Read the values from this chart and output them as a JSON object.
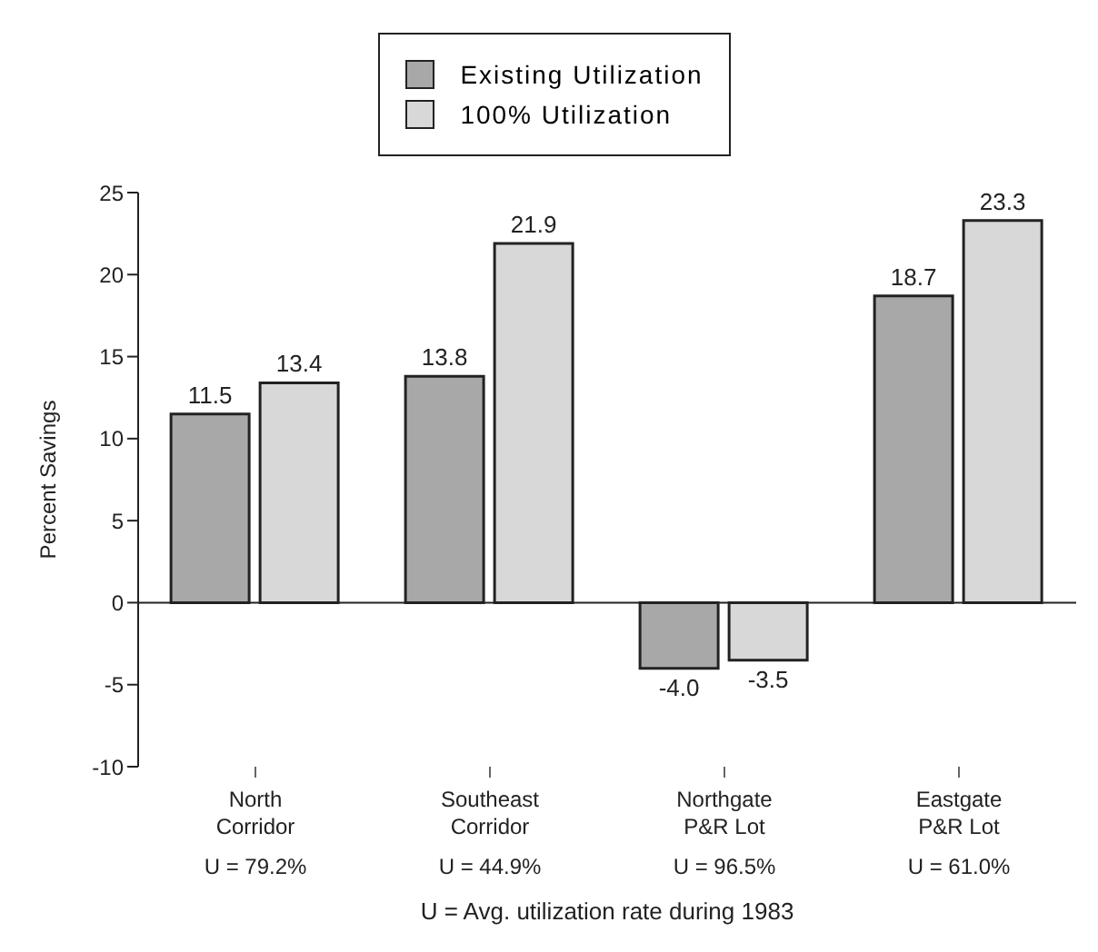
{
  "chart_data": {
    "type": "bar",
    "xlabel": "U = Avg. utilization rate during 1983",
    "ylabel": "Percent Savings",
    "categories": [
      "North\nCorridor\nU = 79.2%",
      "Southeast\nCorridor\nU = 44.9%",
      "Northgate\nP&R Lot\nU = 96.5%",
      "Eastgate\nP&R Lot\nU = 61.0%"
    ],
    "series": [
      {
        "name": "Existing Utilization",
        "color": "#a8a8a8",
        "values": [
          11.5,
          13.8,
          -4.0,
          18.7
        ]
      },
      {
        "name": "100% Utilization",
        "color": "#d8d8d8",
        "values": [
          13.4,
          21.9,
          -3.5,
          23.3
        ]
      }
    ],
    "value_labels": [
      [
        "11.5",
        "13.8",
        "-4.0",
        "18.7"
      ],
      [
        "13.4",
        "21.9",
        "-3.5",
        "23.3"
      ]
    ],
    "ylim": [
      -10,
      25
    ],
    "yticks": [
      -10,
      -5,
      0,
      5,
      10,
      15,
      20,
      25
    ],
    "legend": "top"
  }
}
